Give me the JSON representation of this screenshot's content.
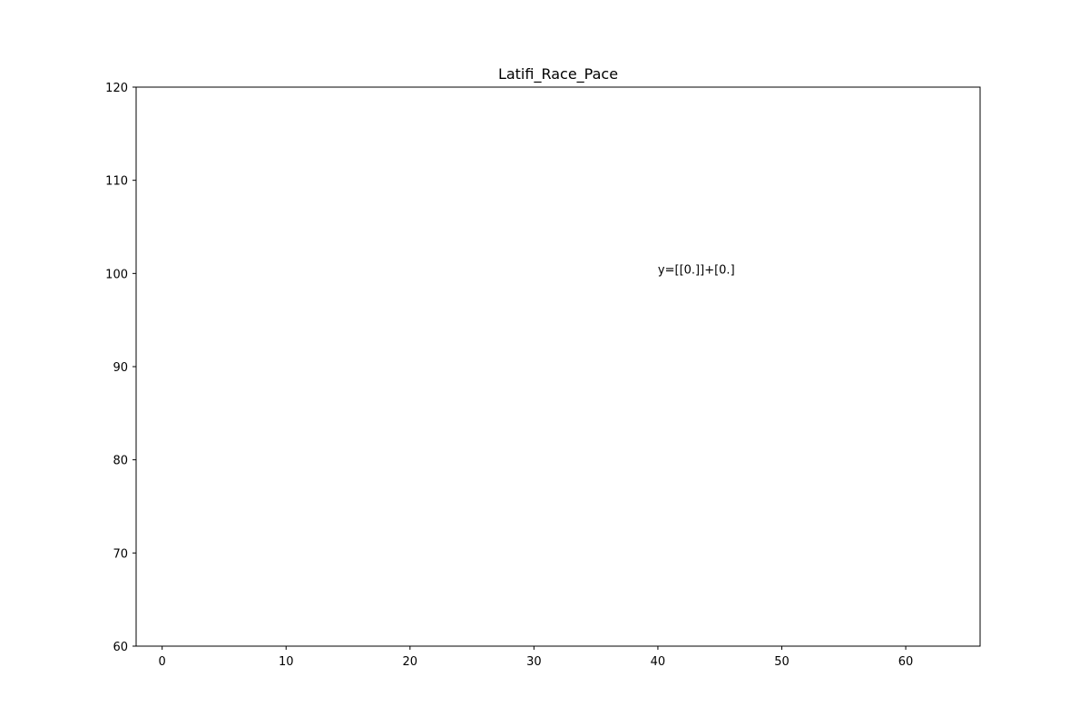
{
  "chart_data": {
    "type": "scatter",
    "title": "Latifi_Race_Pace",
    "xlabel": "",
    "ylabel": "",
    "xlim": [
      -2.1,
      66
    ],
    "ylim": [
      60,
      120
    ],
    "xticks": [
      0,
      10,
      20,
      30,
      40,
      50,
      60
    ],
    "yticks": [
      60,
      70,
      80,
      90,
      100,
      110,
      120
    ],
    "series": [],
    "grid": false,
    "legend": "none",
    "annotations": [
      {
        "text": "y=[[0.]]+[0.]",
        "x": 40,
        "y": 100
      }
    ],
    "colors": {
      "axis": "#000000",
      "background": "#ffffff"
    }
  }
}
